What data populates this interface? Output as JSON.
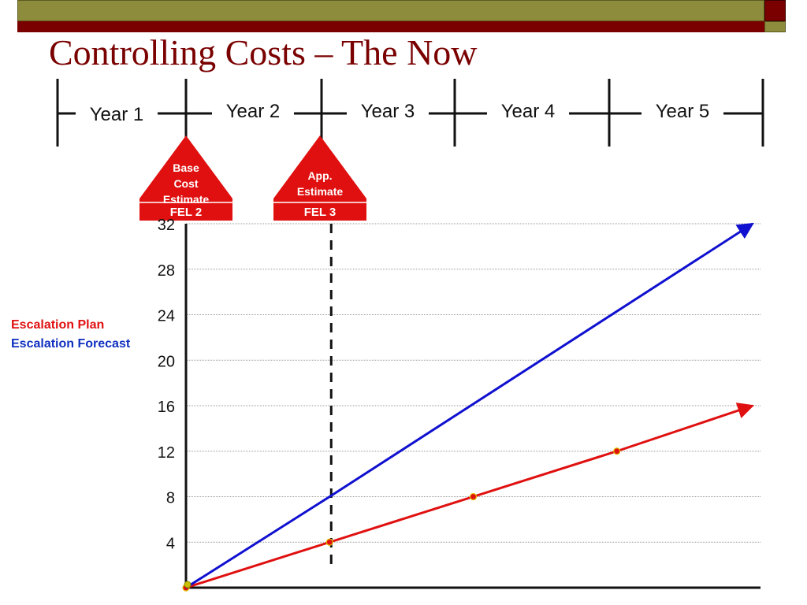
{
  "slide": {
    "title": "Controlling Costs – The Now"
  },
  "timeline": {
    "years": [
      "Year 1",
      "Year 2",
      "Year 3",
      "Year 4",
      "Year 5"
    ]
  },
  "milestones": [
    {
      "label_lines": [
        "Base",
        "Cost",
        "Estimate"
      ],
      "tag": "FEL 2"
    },
    {
      "label_lines": [
        "App.",
        "Estimate"
      ],
      "tag": "FEL 3"
    }
  ],
  "legend": {
    "plan_label": "Escalation Plan",
    "forecast_label": "Escalation Forecast"
  },
  "colors": {
    "title": "#7a0000",
    "accent_red": "#7a0000",
    "olive": "#8c8c3c",
    "plan": "#e01010",
    "forecast": "#1010d0",
    "marker": "#e01010",
    "milestone": "#e01010"
  },
  "chart_data": {
    "type": "line",
    "title": "",
    "xlabel": "",
    "ylabel": "",
    "ylim": [
      0,
      32
    ],
    "xlim": [
      1,
      5
    ],
    "yticks": [
      4,
      8,
      12,
      16,
      20,
      24,
      28,
      32
    ],
    "grid": true,
    "legend_position": "left",
    "series": [
      {
        "name": "Escalation Plan",
        "x": [
          1,
          2,
          3,
          4,
          5
        ],
        "y": [
          0,
          4,
          8,
          12,
          16
        ],
        "markers_x": [
          1,
          2,
          3,
          4
        ],
        "arrow": true
      },
      {
        "name": "Escalation Forecast",
        "x": [
          1,
          2,
          5
        ],
        "y": [
          0,
          8,
          32
        ],
        "markers_x": [],
        "arrow": true
      }
    ],
    "reference_line": {
      "x": 2,
      "style": "dashed",
      "milestone": "FEL 3"
    }
  }
}
